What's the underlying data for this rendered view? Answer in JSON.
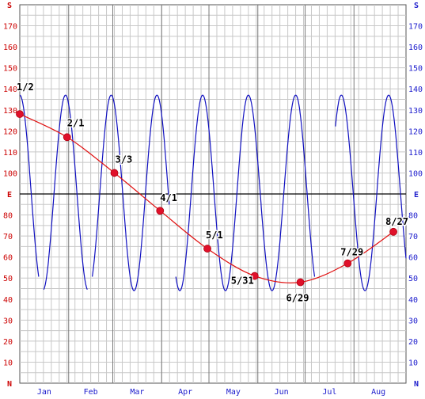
{
  "chart_data": {
    "type": "line",
    "title": "",
    "xlabel": "",
    "ylabel": "",
    "ylim": [
      0,
      180
    ],
    "y_tick_step": 10,
    "y_tick_labels": [
      "N",
      "10",
      "20",
      "30",
      "40",
      "50",
      "60",
      "70",
      "80",
      "E",
      "100",
      "110",
      "120",
      "130",
      "140",
      "150",
      "160",
      "170",
      "S"
    ],
    "x_months": [
      "Jan",
      "Feb",
      "Mar",
      "Apr",
      "May",
      "Jun",
      "Jul",
      "Aug"
    ],
    "grid": true,
    "series": [
      {
        "role": "oscillation",
        "color": "#1010c0",
        "y_min": 44,
        "y_max": 137,
        "peaks_day": [
          1,
          30,
          59,
          88,
          117,
          146,
          176,
          205,
          235
        ],
        "gaps_day": [
          [
            13,
            16
          ],
          [
            44,
            47
          ],
          [
            96,
            100
          ],
          [
            188,
            201
          ]
        ]
      },
      {
        "role": "trend",
        "color": "#e01010",
        "points": [
          {
            "label": "1/2",
            "day": 1,
            "y": 128
          },
          {
            "label": "2/1",
            "day": 31,
            "y": 117
          },
          {
            "label": "3/3",
            "day": 61,
            "y": 100
          },
          {
            "label": "4/1",
            "day": 90,
            "y": 82
          },
          {
            "label": "5/1",
            "day": 120,
            "y": 64
          },
          {
            "label": "5/31",
            "day": 150,
            "y": 51
          },
          {
            "label": "6/29",
            "day": 179,
            "y": 48
          },
          {
            "label": "7/29",
            "day": 209,
            "y": 57
          },
          {
            "label": "8/27",
            "day": 238,
            "y": 72
          }
        ]
      }
    ]
  },
  "colors": {
    "left_axis": "#cc0000",
    "right_axis": "#1a1acc",
    "grid_minor": "#c8c8c8",
    "grid_major": "#7a7a7a",
    "month_text": "#1a1acc"
  }
}
